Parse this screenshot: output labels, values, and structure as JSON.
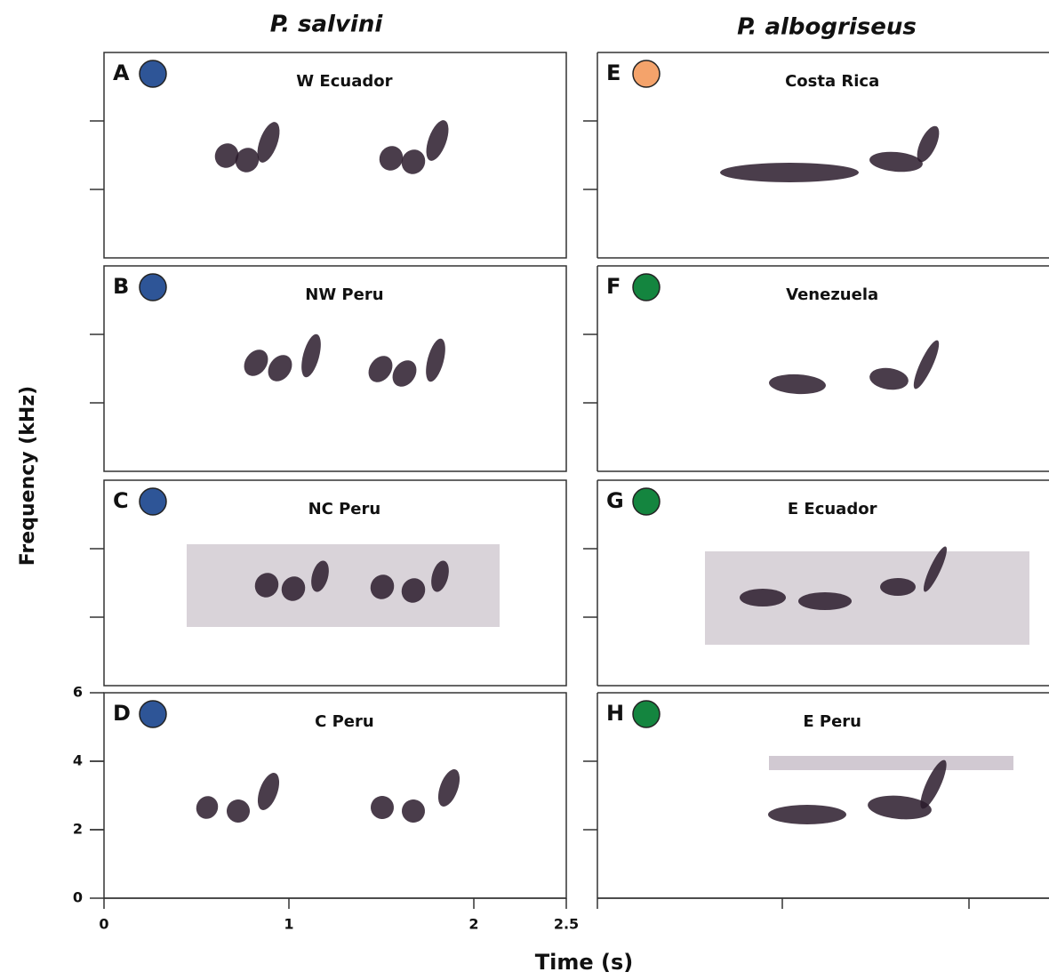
{
  "columns": [
    {
      "title": "P. salvini"
    },
    {
      "title": "P. albogriseus"
    }
  ],
  "panels": [
    {
      "letter": "A",
      "location": "W Ecuador",
      "color": "#2e5597"
    },
    {
      "letter": "B",
      "location": "NW Peru",
      "color": "#2e5597"
    },
    {
      "letter": "C",
      "location": "NC Peru",
      "color": "#2e5597"
    },
    {
      "letter": "D",
      "location": "C Peru",
      "color": "#2e5597"
    },
    {
      "letter": "E",
      "location": "Costa Rica",
      "color": "#f4a36b"
    },
    {
      "letter": "F",
      "location": "Venezuela",
      "color": "#14853f"
    },
    {
      "letter": "G",
      "location": "E Ecuador",
      "color": "#14853f"
    },
    {
      "letter": "H",
      "location": "E Peru",
      "color": "#14853f"
    }
  ],
  "y_axis": {
    "label": "Frequency (kHz)",
    "ticks": [
      0,
      2,
      4,
      6
    ],
    "range": [
      0,
      6
    ]
  },
  "x_axis": {
    "label": "Time (s)",
    "ticks": [
      0,
      1,
      2,
      2.5
    ],
    "range": [
      0,
      2.5
    ]
  }
}
